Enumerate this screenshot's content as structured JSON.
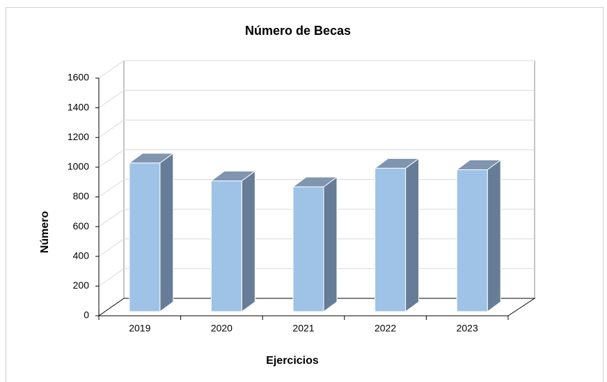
{
  "chart_data": {
    "type": "bar3d",
    "title": "Número de Becas",
    "x_label": "Ejercicios",
    "y_label": "Número",
    "categories": [
      "2019",
      "2020",
      "2021",
      "2022",
      "2023"
    ],
    "values": [
      1000,
      880,
      840,
      965,
      955
    ],
    "color": "#9fc3e7",
    "ylim": [
      0,
      1600
    ],
    "yticks": [
      0,
      200,
      400,
      600,
      800,
      1000,
      1200,
      1400,
      1600
    ],
    "grid": true
  }
}
